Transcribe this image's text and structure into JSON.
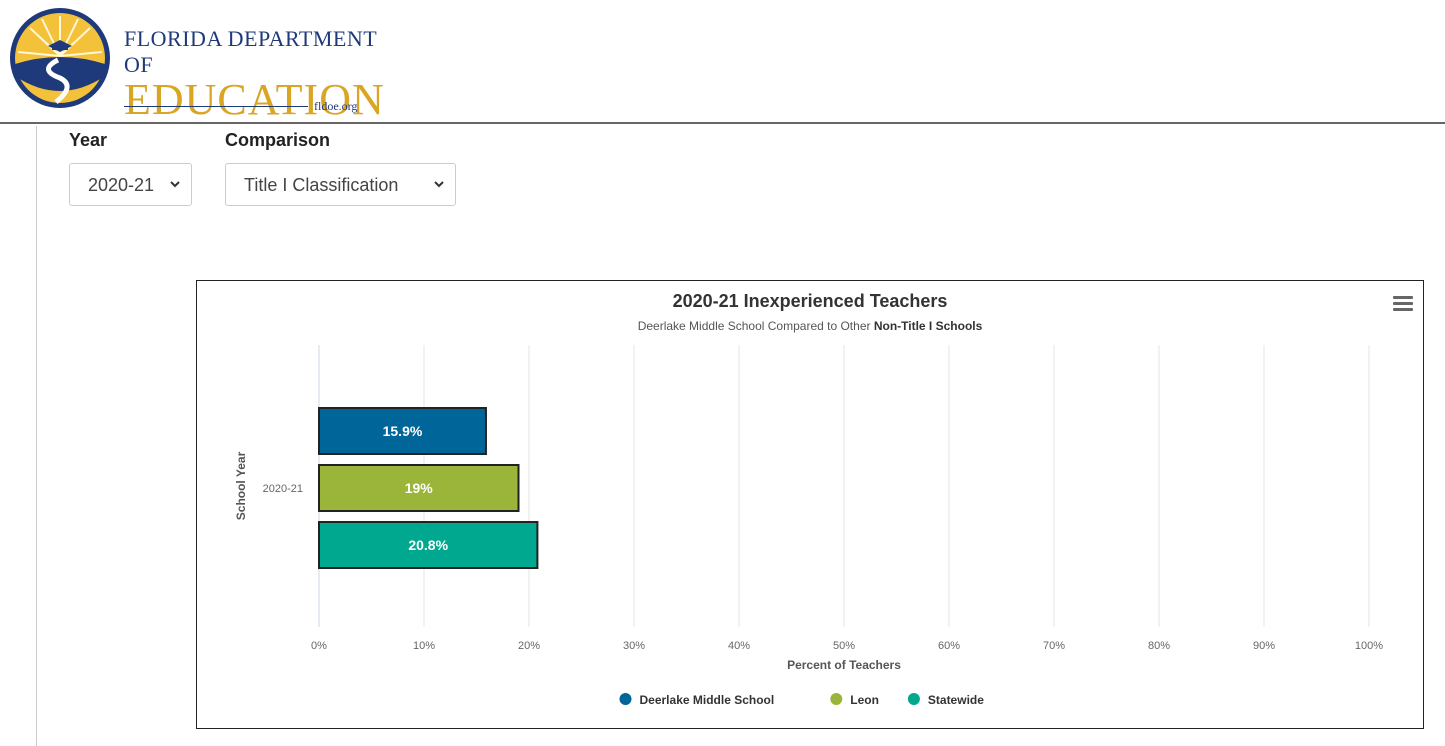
{
  "header": {
    "logo_line1": "FLORIDA DEPARTMENT OF",
    "logo_line2": "EDUCATION",
    "logo_line3": "fldoe.org"
  },
  "filters": {
    "year_label": "Year",
    "year_value": "2020-21",
    "comparison_label": "Comparison",
    "comparison_value": "Title I Classification"
  },
  "chart_data": {
    "type": "bar",
    "orientation": "horizontal",
    "title": "2020-21 Inexperienced Teachers",
    "subtitle_prefix": "Deerlake Middle School Compared to Other ",
    "subtitle_bold": "Non-Title I Schools",
    "categories": [
      "2020-21"
    ],
    "series": [
      {
        "name": "Deerlake Middle School",
        "values": [
          15.9
        ],
        "label": "15.9%",
        "color": "#006699"
      },
      {
        "name": "Leon",
        "values": [
          19
        ],
        "label": "19%",
        "color": "#9bb53a"
      },
      {
        "name": "Statewide",
        "values": [
          20.8
        ],
        "label": "20.8%",
        "color": "#00a88f"
      }
    ],
    "xlabel": "Percent of Teachers",
    "ylabel": "School Year",
    "xlim": [
      0,
      100
    ],
    "xticks": [
      "0%",
      "10%",
      "20%",
      "30%",
      "40%",
      "50%",
      "60%",
      "70%",
      "80%",
      "90%",
      "100%"
    ],
    "grid": true,
    "legend": "bottom-center"
  }
}
